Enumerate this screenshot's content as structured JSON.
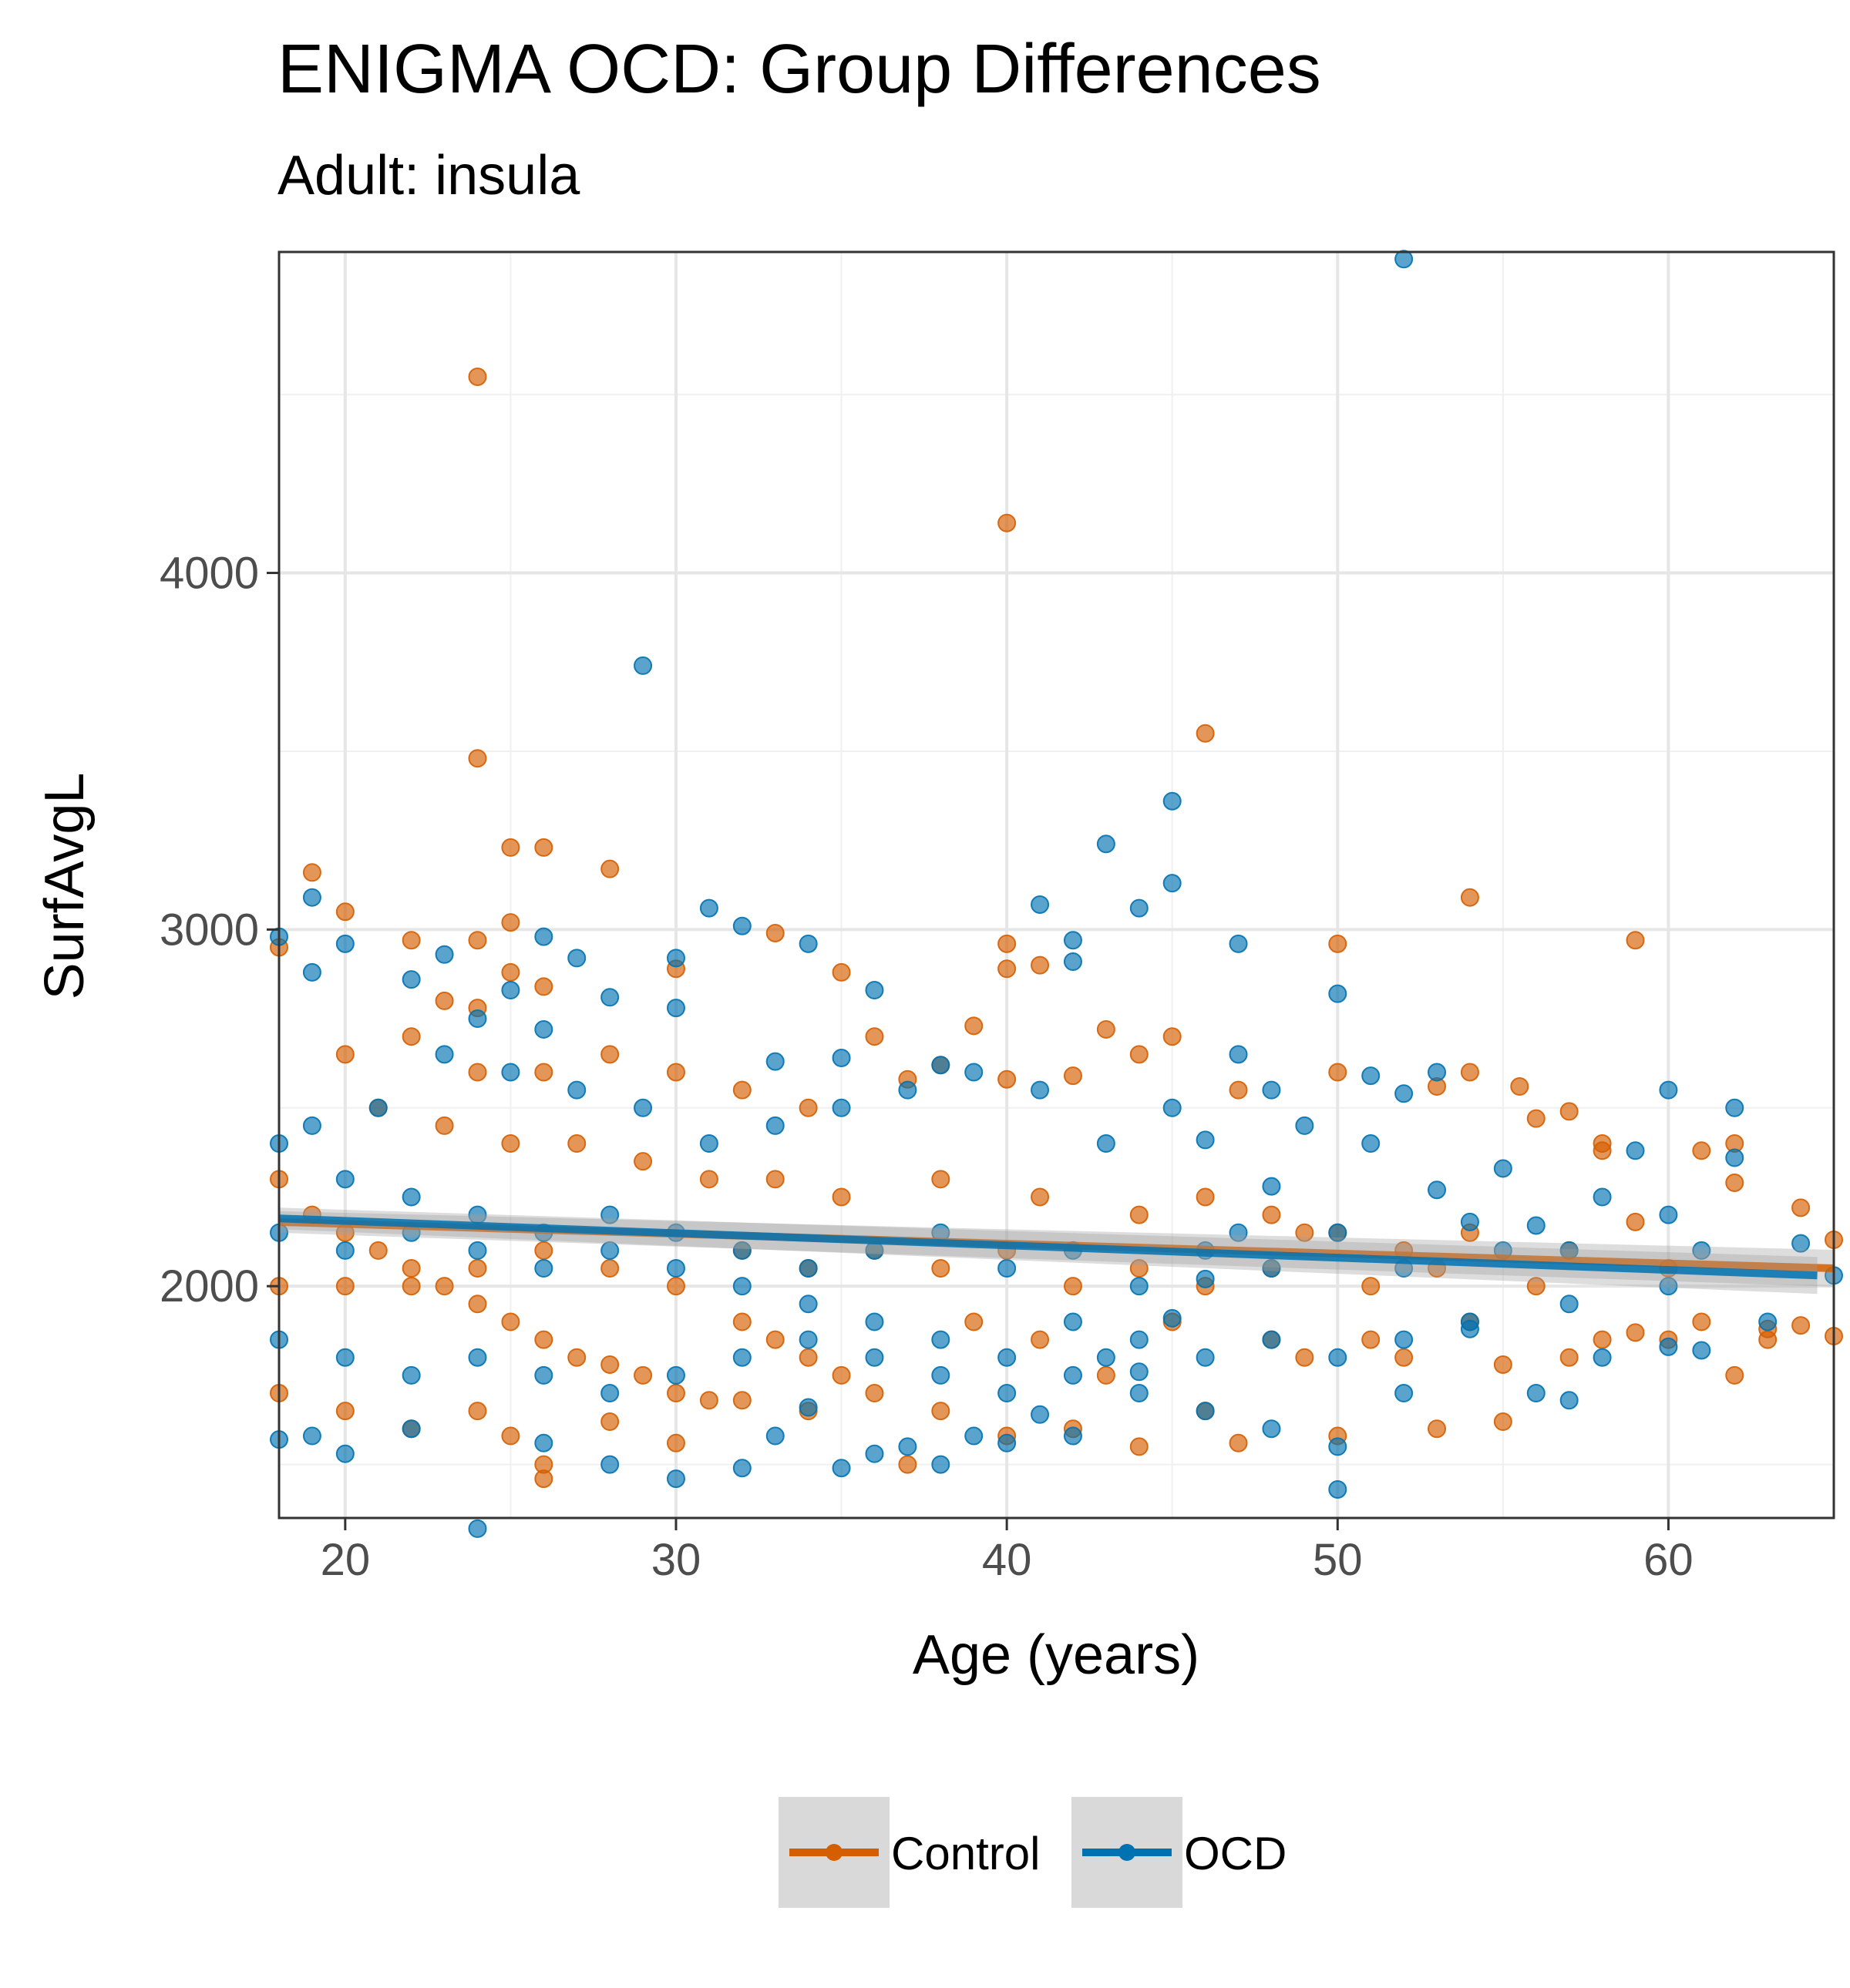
{
  "chart_data": {
    "type": "scatter",
    "title": "ENIGMA OCD: Group Differences",
    "subtitle": "Adult: insula",
    "xlabel": "Age (years)",
    "ylabel": "SurfAvgL",
    "xlim": [
      18,
      65
    ],
    "ylim": [
      1350,
      4900
    ],
    "x_ticks": [
      20,
      30,
      40,
      50,
      60
    ],
    "x_tick_labels": [
      "20",
      "30",
      "40",
      "50",
      "60"
    ],
    "y_ticks": [
      2000,
      3000,
      4000
    ],
    "y_tick_labels": [
      "2000",
      "3000",
      "4000"
    ],
    "grid": true,
    "legend": "bottom",
    "series": [
      {
        "name": "Control",
        "color": "#D55E00",
        "points": [
          [
            24,
            4550
          ],
          [
            40,
            4140
          ],
          [
            24,
            3480
          ],
          [
            46,
            3550
          ],
          [
            25,
            3230
          ],
          [
            26,
            3230
          ],
          [
            28,
            3170
          ],
          [
            19,
            3160
          ],
          [
            54,
            3090
          ],
          [
            20,
            3050
          ],
          [
            25,
            3020
          ],
          [
            33,
            2990
          ],
          [
            22,
            2970
          ],
          [
            24,
            2970
          ],
          [
            40,
            2960
          ],
          [
            50,
            2960
          ],
          [
            59,
            2970
          ],
          [
            35,
            2880
          ],
          [
            40,
            2890
          ],
          [
            41,
            2900
          ],
          [
            30,
            2890
          ],
          [
            25,
            2880
          ],
          [
            26,
            2840
          ],
          [
            23,
            2800
          ],
          [
            24,
            2780
          ],
          [
            38,
            2620
          ],
          [
            36,
            2700
          ],
          [
            45,
            2700
          ],
          [
            39,
            2730
          ],
          [
            43,
            2720
          ],
          [
            44,
            2650
          ],
          [
            53,
            2560
          ],
          [
            54,
            2600
          ],
          [
            55.5,
            2560
          ],
          [
            56,
            2470
          ],
          [
            57,
            2490
          ],
          [
            47,
            2550
          ],
          [
            58,
            2400
          ],
          [
            50,
            2600
          ],
          [
            40,
            2580
          ],
          [
            42,
            2590
          ],
          [
            18,
            2950
          ],
          [
            20,
            2650
          ],
          [
            22,
            2700
          ],
          [
            24,
            2600
          ],
          [
            26,
            2600
          ],
          [
            28,
            2650
          ],
          [
            30,
            2600
          ],
          [
            32,
            2550
          ],
          [
            34,
            2500
          ],
          [
            37,
            2580
          ],
          [
            21,
            2500
          ],
          [
            23,
            2450
          ],
          [
            25,
            2400
          ],
          [
            27,
            2400
          ],
          [
            29,
            2350
          ],
          [
            31,
            2300
          ],
          [
            33,
            2300
          ],
          [
            35,
            2250
          ],
          [
            38,
            2300
          ],
          [
            41,
            2250
          ],
          [
            44,
            2200
          ],
          [
            46,
            2250
          ],
          [
            48,
            2200
          ],
          [
            50,
            2150
          ],
          [
            52,
            2100
          ],
          [
            54,
            2150
          ],
          [
            57,
            2100
          ],
          [
            60,
            2050
          ],
          [
            62,
            2400
          ],
          [
            64,
            2220
          ],
          [
            65,
            2130
          ],
          [
            18,
            2300
          ],
          [
            19,
            2200
          ],
          [
            20,
            2150
          ],
          [
            21,
            2100
          ],
          [
            22,
            2050
          ],
          [
            23,
            2000
          ],
          [
            24,
            1950
          ],
          [
            25,
            1900
          ],
          [
            26,
            1850
          ],
          [
            27,
            1800
          ],
          [
            28,
            1780
          ],
          [
            29,
            1750
          ],
          [
            30,
            1700
          ],
          [
            31,
            1680
          ],
          [
            32,
            1900
          ],
          [
            33,
            1850
          ],
          [
            34,
            1800
          ],
          [
            35,
            1750
          ],
          [
            36,
            1700
          ],
          [
            37,
            1500
          ],
          [
            38,
            1650
          ],
          [
            39,
            1900
          ],
          [
            40,
            1580
          ],
          [
            41,
            1850
          ],
          [
            42,
            1600
          ],
          [
            43,
            1750
          ],
          [
            44,
            1550
          ],
          [
            45,
            1900
          ],
          [
            46,
            1650
          ],
          [
            47,
            1560
          ],
          [
            48,
            1850
          ],
          [
            49,
            1800
          ],
          [
            50,
            1580
          ],
          [
            51,
            1850
          ],
          [
            52,
            1800
          ],
          [
            53,
            1600
          ],
          [
            54,
            1900
          ],
          [
            55,
            1620
          ],
          [
            55,
            1780
          ],
          [
            57,
            1800
          ],
          [
            58,
            1850
          ],
          [
            59,
            1870
          ],
          [
            60,
            1850
          ],
          [
            61,
            1900
          ],
          [
            62,
            1750
          ],
          [
            63,
            1850
          ],
          [
            65,
            1860
          ],
          [
            18,
            1700
          ],
          [
            20,
            1650
          ],
          [
            22,
            1600
          ],
          [
            24,
            1650
          ],
          [
            25,
            1580
          ],
          [
            26,
            1500
          ],
          [
            26,
            1460
          ],
          [
            28,
            1620
          ],
          [
            30,
            1560
          ],
          [
            32,
            1680
          ],
          [
            34,
            1650
          ],
          [
            18,
            2000
          ],
          [
            20,
            2000
          ],
          [
            22,
            2000
          ],
          [
            24,
            2050
          ],
          [
            26,
            2100
          ],
          [
            28,
            2050
          ],
          [
            30,
            2000
          ],
          [
            32,
            2100
          ],
          [
            34,
            2050
          ],
          [
            36,
            2100
          ],
          [
            38,
            2050
          ],
          [
            40,
            2100
          ],
          [
            42,
            2000
          ],
          [
            44,
            2050
          ],
          [
            46,
            2000
          ],
          [
            48,
            2050
          ],
          [
            49,
            2150
          ],
          [
            51,
            2000
          ],
          [
            53,
            2050
          ],
          [
            56,
            2000
          ],
          [
            58,
            2380
          ],
          [
            59,
            2180
          ],
          [
            61,
            2380
          ],
          [
            62,
            2290
          ],
          [
            63,
            1880
          ],
          [
            64,
            1890
          ]
        ],
        "trend": [
          [
            18,
            2180
          ],
          [
            65,
            2050
          ]
        ]
      },
      {
        "name": "OCD",
        "color": "#0072B2",
        "points": [
          [
            52,
            4880
          ],
          [
            29,
            3740
          ],
          [
            45,
            3360
          ],
          [
            43,
            3240
          ],
          [
            45,
            3130
          ],
          [
            31,
            3060
          ],
          [
            41,
            3070
          ],
          [
            44,
            3060
          ],
          [
            19,
            3090
          ],
          [
            32,
            3010
          ],
          [
            18,
            2980
          ],
          [
            26,
            2980
          ],
          [
            42,
            2970
          ],
          [
            20,
            2960
          ],
          [
            34,
            2960
          ],
          [
            47,
            2960
          ],
          [
            23,
            2930
          ],
          [
            27,
            2920
          ],
          [
            30,
            2920
          ],
          [
            42,
            2910
          ],
          [
            19,
            2880
          ],
          [
            22,
            2860
          ],
          [
            36,
            2830
          ],
          [
            50,
            2820
          ],
          [
            25,
            2830
          ],
          [
            28,
            2810
          ],
          [
            30,
            2780
          ],
          [
            24,
            2750
          ],
          [
            26,
            2720
          ],
          [
            33,
            2630
          ],
          [
            35,
            2640
          ],
          [
            38,
            2620
          ],
          [
            47,
            2650
          ],
          [
            51,
            2590
          ],
          [
            53,
            2600
          ],
          [
            52,
            2540
          ],
          [
            60,
            2550
          ],
          [
            62,
            2500
          ],
          [
            59,
            2380
          ],
          [
            58,
            2250
          ],
          [
            62,
            2360
          ],
          [
            46,
            2410
          ],
          [
            48,
            2550
          ],
          [
            45,
            2500
          ],
          [
            43,
            2400
          ],
          [
            41,
            2550
          ],
          [
            39,
            2600
          ],
          [
            37,
            2550
          ],
          [
            35,
            2500
          ],
          [
            33,
            2450
          ],
          [
            31,
            2400
          ],
          [
            29,
            2500
          ],
          [
            27,
            2550
          ],
          [
            25,
            2600
          ],
          [
            23,
            2650
          ],
          [
            21,
            2500
          ],
          [
            19,
            2450
          ],
          [
            18,
            2400
          ],
          [
            20,
            2300
          ],
          [
            22,
            2250
          ],
          [
            24,
            2200
          ],
          [
            26,
            2150
          ],
          [
            28,
            2100
          ],
          [
            30,
            2050
          ],
          [
            32,
            2000
          ],
          [
            34,
            1950
          ],
          [
            36,
            1900
          ],
          [
            38,
            1850
          ],
          [
            40,
            1800
          ],
          [
            42,
            1750
          ],
          [
            44,
            1700
          ],
          [
            46,
            1650
          ],
          [
            48,
            1600
          ],
          [
            50,
            1550
          ],
          [
            50,
            1430
          ],
          [
            52,
            1700
          ],
          [
            54,
            1900
          ],
          [
            56,
            1700
          ],
          [
            57,
            1680
          ],
          [
            58,
            1800
          ],
          [
            60,
            1830
          ],
          [
            61,
            1820
          ],
          [
            63,
            1900
          ],
          [
            64,
            2120
          ],
          [
            65,
            2030
          ],
          [
            61,
            2100
          ],
          [
            60,
            2200
          ],
          [
            57,
            2100
          ],
          [
            56,
            2170
          ],
          [
            55,
            2330
          ],
          [
            54,
            2180
          ],
          [
            53,
            2270
          ],
          [
            51,
            2400
          ],
          [
            49,
            2450
          ],
          [
            48,
            2280
          ],
          [
            47,
            2150
          ],
          [
            46,
            2020
          ],
          [
            45,
            1910
          ],
          [
            44,
            1760
          ],
          [
            43,
            1800
          ],
          [
            42,
            1580
          ],
          [
            41,
            1640
          ],
          [
            40,
            1560
          ],
          [
            39,
            1580
          ],
          [
            38,
            1500
          ],
          [
            37,
            1550
          ],
          [
            36,
            1530
          ],
          [
            35,
            1490
          ],
          [
            34,
            1660
          ],
          [
            33,
            1580
          ],
          [
            32,
            1490
          ],
          [
            30,
            1460
          ],
          [
            28,
            1500
          ],
          [
            26,
            1560
          ],
          [
            24,
            1320
          ],
          [
            22,
            1600
          ],
          [
            20,
            1530
          ],
          [
            19,
            1580
          ],
          [
            18,
            1570
          ],
          [
            18,
            1850
          ],
          [
            20,
            1800
          ],
          [
            22,
            1750
          ],
          [
            24,
            1800
          ],
          [
            26,
            1750
          ],
          [
            28,
            1700
          ],
          [
            30,
            1750
          ],
          [
            32,
            1800
          ],
          [
            34,
            1850
          ],
          [
            36,
            1800
          ],
          [
            38,
            1750
          ],
          [
            40,
            1700
          ],
          [
            42,
            1900
          ],
          [
            44,
            1850
          ],
          [
            46,
            1800
          ],
          [
            48,
            1850
          ],
          [
            50,
            1800
          ],
          [
            52,
            1850
          ],
          [
            54,
            1880
          ],
          [
            57,
            1950
          ],
          [
            60,
            2000
          ],
          [
            18,
            2150
          ],
          [
            20,
            2100
          ],
          [
            22,
            2150
          ],
          [
            24,
            2100
          ],
          [
            26,
            2050
          ],
          [
            28,
            2200
          ],
          [
            30,
            2150
          ],
          [
            32,
            2100
          ],
          [
            34,
            2050
          ],
          [
            36,
            2100
          ],
          [
            38,
            2150
          ],
          [
            40,
            2050
          ],
          [
            42,
            2100
          ],
          [
            44,
            2000
          ],
          [
            46,
            2100
          ],
          [
            48,
            2050
          ],
          [
            50,
            2150
          ],
          [
            52,
            2050
          ],
          [
            55,
            2100
          ]
        ],
        "trend": [
          [
            18,
            2190
          ],
          [
            64.5,
            2030
          ]
        ]
      }
    ]
  }
}
